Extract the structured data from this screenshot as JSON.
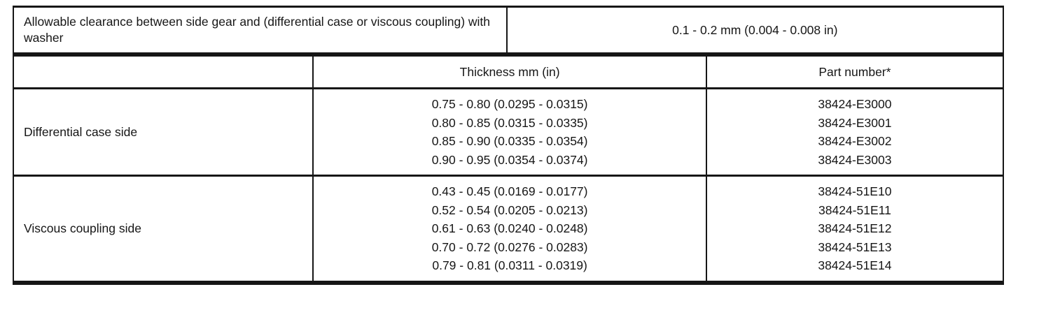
{
  "clearance": {
    "label": "Allowable clearance between side gear and (differential case or viscous coupling) with washer",
    "value": "0.1 - 0.2 mm (0.004 - 0.008 in)"
  },
  "table": {
    "headers": {
      "side": "",
      "thickness": "Thickness mm (in)",
      "part_number": "Part number*"
    },
    "rows": [
      {
        "side": "Differential case side",
        "entries": [
          {
            "thickness": "0.75 - 0.80 (0.0295 - 0.0315)",
            "part_number": "38424-E3000"
          },
          {
            "thickness": "0.80 - 0.85 (0.0315 - 0.0335)",
            "part_number": "38424-E3001"
          },
          {
            "thickness": "0.85 - 0.90 (0.0335 - 0.0354)",
            "part_number": "38424-E3002"
          },
          {
            "thickness": "0.90 - 0.95 (0.0354 - 0.0374)",
            "part_number": "38424-E3003"
          }
        ]
      },
      {
        "side": "Viscous coupling side",
        "entries": [
          {
            "thickness": "0.43 - 0.45 (0.0169 - 0.0177)",
            "part_number": "38424-51E10"
          },
          {
            "thickness": "0.52 - 0.54 (0.0205 - 0.0213)",
            "part_number": "38424-51E11"
          },
          {
            "thickness": "0.61 - 0.63 (0.0240 - 0.0248)",
            "part_number": "38424-51E12"
          },
          {
            "thickness": "0.70 - 0.72 (0.0276 - 0.0283)",
            "part_number": "38424-51E13"
          },
          {
            "thickness": "0.79 - 0.81 (0.0311 - 0.0319)",
            "part_number": "38424-51E14"
          }
        ]
      }
    ]
  }
}
